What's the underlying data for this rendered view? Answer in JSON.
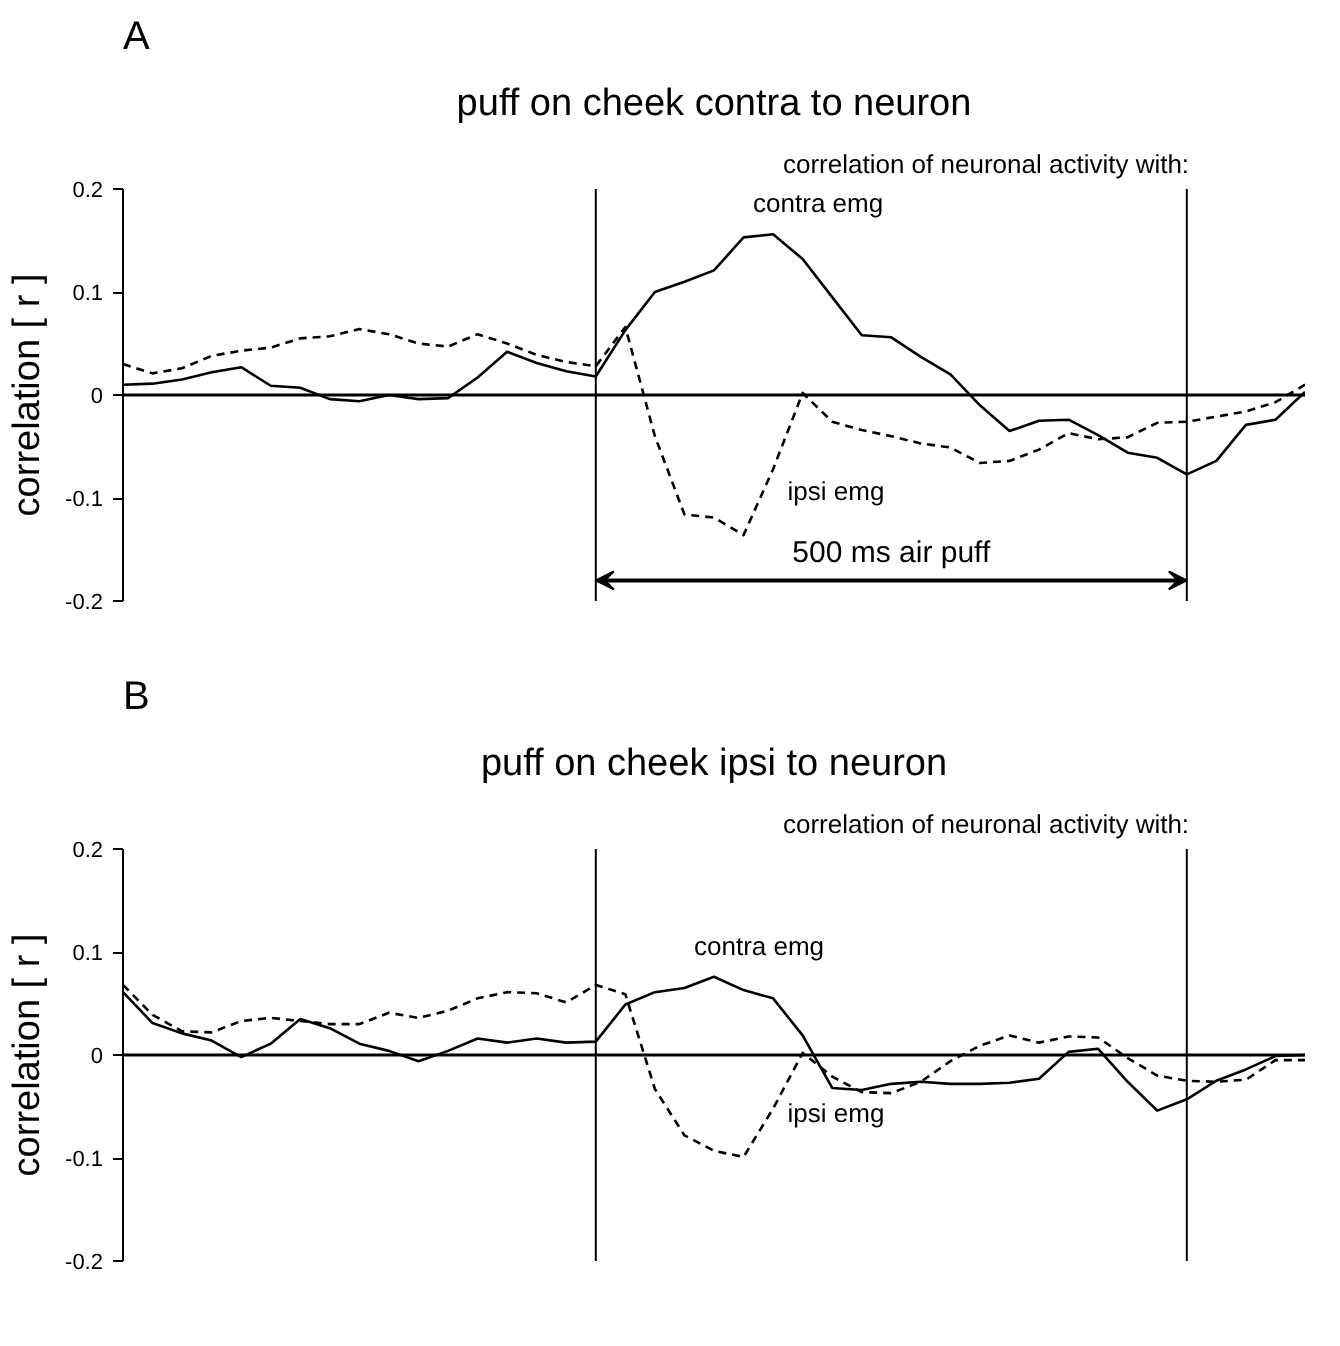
{
  "chart_data": [
    {
      "type": "line",
      "title": "puff on cheek contra to neuron",
      "ylabel": "correlation [ r ]",
      "ylim": [
        -0.2,
        0.2
      ],
      "yticks": [
        -0.2,
        -0.1,
        0,
        0.1,
        0.2
      ],
      "tick_labels": "y",
      "grid": false,
      "categories": [
        null,
        null,
        null,
        null,
        null,
        null,
        null,
        null,
        null,
        null,
        null,
        null,
        null,
        null,
        null,
        null,
        null,
        null,
        null,
        null,
        null,
        null,
        null,
        null,
        null,
        null,
        null,
        null,
        null,
        null,
        null,
        null,
        null,
        null,
        null,
        null,
        null,
        null,
        null,
        null,
        null
      ],
      "annotations": [
        "A",
        "correlation of neuronal activity with:",
        "500 ms air puff"
      ],
      "ref_lines": [
        {
          "axis": "y",
          "value": 0
        }
      ],
      "series": [
        {
          "name": "contra emg",
          "color": "#000000",
          "line_style": "solid",
          "values": [
            0.01,
            0.011,
            0.015,
            0.022,
            0.027,
            0.009,
            0.007,
            -0.004,
            -0.006,
            0,
            -0.004,
            -0.003,
            0.017,
            0.042,
            0.031,
            0.023,
            0.018,
            0.063,
            0.1,
            0.11,
            0.121,
            0.153,
            0.156,
            0.132,
            0.095,
            0.058,
            0.056,
            0.037,
            0.02,
            -0.01,
            -0.035,
            -0.025,
            -0.024,
            -0.039,
            -0.056,
            -0.061,
            -0.077,
            -0.064,
            -0.029,
            -0.024,
            0.003
          ]
        },
        {
          "name": "ipsi emg",
          "color": "#000000",
          "line_style": "dashed",
          "values": [
            0.03,
            0.021,
            0.026,
            0.038,
            0.043,
            0.046,
            0.055,
            0.057,
            0.064,
            0.059,
            0.05,
            0.047,
            0.059,
            0.05,
            0.039,
            0.032,
            0.028,
            0.066,
            -0.04,
            -0.116,
            -0.119,
            -0.136,
            -0.072,
            0.002,
            -0.026,
            -0.034,
            -0.04,
            -0.047,
            -0.051,
            -0.066,
            -0.064,
            -0.053,
            -0.037,
            -0.043,
            -0.041,
            -0.027,
            -0.026,
            -0.021,
            -0.016,
            -0.007,
            0.01
          ]
        }
      ]
    },
    {
      "type": "line",
      "title": "puff on cheek ipsi to neuron",
      "ylabel": "correlation [ r ]",
      "ylim": [
        -0.2,
        0.2
      ],
      "yticks": [
        -0.2,
        -0.1,
        0,
        0.1,
        0.2
      ],
      "tick_labels": "y",
      "grid": false,
      "categories": [
        null,
        null,
        null,
        null,
        null,
        null,
        null,
        null,
        null,
        null,
        null,
        null,
        null,
        null,
        null,
        null,
        null,
        null,
        null,
        null,
        null,
        null,
        null,
        null,
        null,
        null,
        null,
        null,
        null,
        null,
        null,
        null,
        null,
        null,
        null,
        null,
        null,
        null,
        null,
        null,
        null
      ],
      "annotations": [
        "B",
        "correlation of neuronal activity with:"
      ],
      "ref_lines": [
        {
          "axis": "y",
          "value": 0
        }
      ],
      "series": [
        {
          "name": "contra emg",
          "color": "#000000",
          "line_style": "solid",
          "values": [
            0.061,
            0.031,
            0.021,
            0.014,
            -0.002,
            0.011,
            0.035,
            0.026,
            0.011,
            0.004,
            -0.006,
            0.004,
            0.016,
            0.012,
            0.016,
            0.012,
            0.013,
            0.049,
            0.061,
            0.065,
            0.076,
            0.063,
            0.055,
            0.019,
            -0.032,
            -0.034,
            -0.028,
            -0.026,
            -0.028,
            -0.028,
            -0.027,
            -0.023,
            0.003,
            0.006,
            -0.026,
            -0.054,
            -0.043,
            -0.025,
            -0.014,
            -0.001,
            0
          ]
        },
        {
          "name": "ipsi emg",
          "color": "#000000",
          "line_style": "dashed",
          "values": [
            0.068,
            0.039,
            0.023,
            0.022,
            0.033,
            0.036,
            0.033,
            0.03,
            0.03,
            0.041,
            0.036,
            0.043,
            0.055,
            0.061,
            0.06,
            0.051,
            0.068,
            0.059,
            -0.033,
            -0.078,
            -0.093,
            -0.099,
            -0.052,
            0.002,
            -0.021,
            -0.036,
            -0.037,
            -0.026,
            -0.006,
            0.009,
            0.019,
            0.012,
            0.018,
            0.017,
            -0.003,
            -0.02,
            -0.025,
            -0.026,
            -0.024,
            -0.005,
            -0.005
          ]
        }
      ]
    }
  ]
}
